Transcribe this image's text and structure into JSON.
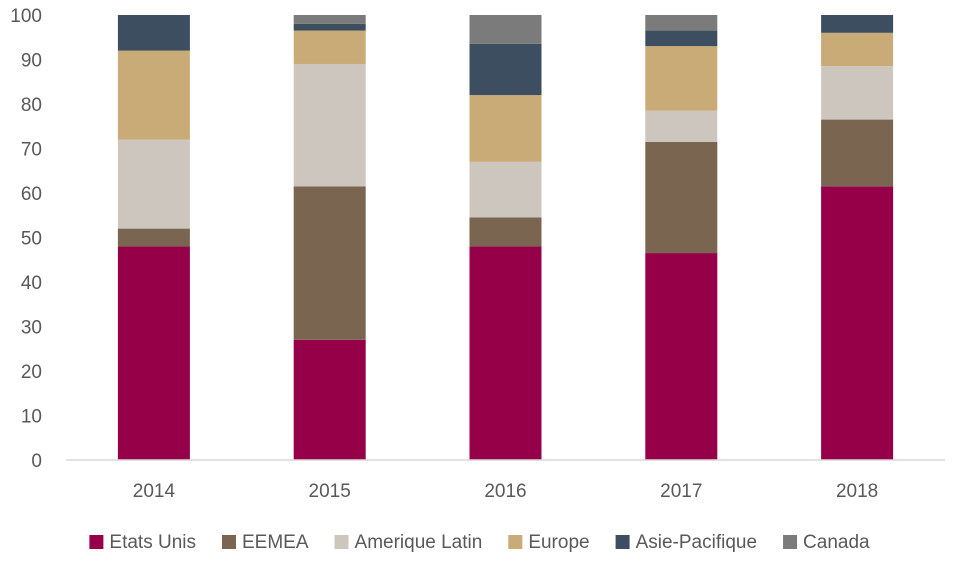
{
  "chart_data": {
    "type": "bar",
    "stacked": true,
    "title": "",
    "xlabel": "",
    "ylabel": "",
    "ylim": [
      0,
      100
    ],
    "yticks": [
      0,
      10,
      20,
      30,
      40,
      50,
      60,
      70,
      80,
      90,
      100
    ],
    "categories": [
      "2014",
      "2015",
      "2016",
      "2017",
      "2018"
    ],
    "grid": false,
    "legend_position": "bottom",
    "series": [
      {
        "name": "Etats Unis",
        "color": "#960048",
        "values": [
          48,
          27,
          48,
          46.5,
          61.5
        ]
      },
      {
        "name": "EEMEA",
        "color": "#7a6550",
        "values": [
          4,
          34.5,
          6.5,
          25,
          15
        ]
      },
      {
        "name": "Amerique Latin",
        "color": "#cdc6bf",
        "values": [
          20,
          27.5,
          12.5,
          7,
          12
        ]
      },
      {
        "name": "Europe",
        "color": "#c8ab76",
        "values": [
          20,
          7.5,
          15,
          14.5,
          7.5
        ]
      },
      {
        "name": "Asie-Pacifique",
        "color": "#3c4e60",
        "values": [
          8,
          1.5,
          11.5,
          3.5,
          4
        ]
      },
      {
        "name": "Canada",
        "color": "#7b7b7b",
        "values": [
          0,
          2,
          6.5,
          3.5,
          0
        ]
      }
    ]
  }
}
